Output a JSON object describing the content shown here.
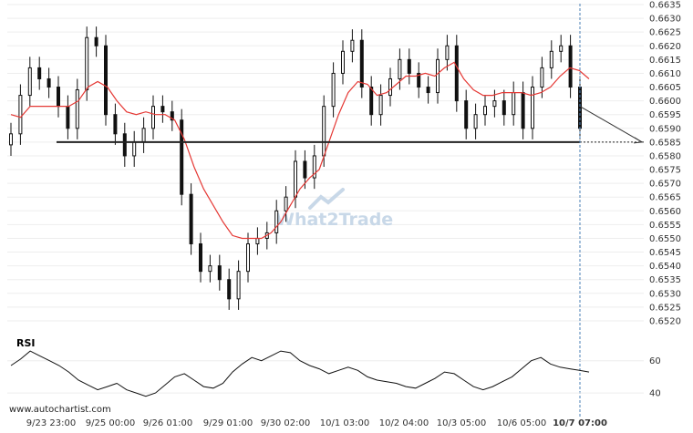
{
  "site": "www.autochartist.com",
  "watermark": {
    "part1": "What",
    "part2": "2",
    "part3": "Trade"
  },
  "colors": {
    "candle": "#111111",
    "ma": "#e53935",
    "level": "#222222",
    "rsi": "#111111",
    "grid": "#eeeeee",
    "marker": "#4a7fb5",
    "watermark": "#c8d8e8"
  },
  "chart_data": {
    "type": "line",
    "main": {
      "y_ticks": [
        "0.6635",
        "0.6630",
        "0.6625",
        "0.6620",
        "0.6615",
        "0.6610",
        "0.6605",
        "0.6600",
        "0.6595",
        "0.6590",
        "0.6585",
        "0.6580",
        "0.6575",
        "0.6570",
        "0.6565",
        "0.6560",
        "0.6555",
        "0.6550",
        "0.6545",
        "0.6540",
        "0.6535",
        "0.6530",
        "0.6525",
        "0.6520"
      ],
      "ylim": [
        0.6518,
        0.6636
      ],
      "support_level": 0.6585,
      "forecast": {
        "from": 0.6598,
        "to": 0.6585
      },
      "moving_average": [
        0.6595,
        0.6594,
        0.6598,
        0.6598,
        0.6598,
        0.6598,
        0.6598,
        0.66,
        0.6605,
        0.6607,
        0.6605,
        0.66,
        0.6596,
        0.6595,
        0.6596,
        0.6595,
        0.6595,
        0.6593,
        0.6586,
        0.6576,
        0.6568,
        0.6562,
        0.6556,
        0.6551,
        0.655,
        0.655,
        0.655,
        0.6552,
        0.6556,
        0.6562,
        0.6568,
        0.6572,
        0.6575,
        0.6585,
        0.6595,
        0.6603,
        0.6607,
        0.6606,
        0.6602,
        0.6603,
        0.6606,
        0.6609,
        0.6609,
        0.661,
        0.6609,
        0.6612,
        0.6614,
        0.6608,
        0.6604,
        0.6602,
        0.6602,
        0.6603,
        0.6603,
        0.6603,
        0.6602,
        0.6603,
        0.6605,
        0.6609,
        0.6612,
        0.6611,
        0.6608
      ],
      "closes": [
        0.6588,
        0.6602,
        0.6612,
        0.6608,
        0.6605,
        0.6598,
        0.659,
        0.6604,
        0.6623,
        0.662,
        0.6595,
        0.6588,
        0.658,
        0.6585,
        0.659,
        0.6598,
        0.6596,
        0.6593,
        0.6566,
        0.6548,
        0.6538,
        0.654,
        0.6535,
        0.6528,
        0.6538,
        0.6548,
        0.655,
        0.6552,
        0.656,
        0.6565,
        0.6578,
        0.6572,
        0.658,
        0.6598,
        0.661,
        0.6618,
        0.6622,
        0.6605,
        0.6595,
        0.6602,
        0.6608,
        0.6615,
        0.661,
        0.6605,
        0.6603,
        0.6615,
        0.662,
        0.66,
        0.659,
        0.6595,
        0.6598,
        0.66,
        0.6595,
        0.6603,
        0.659,
        0.6605,
        0.6612,
        0.6618,
        0.662,
        0.6605,
        0.659
      ]
    },
    "rsi": {
      "title": "RSI",
      "y_ticks": [
        "60",
        "40"
      ],
      "ylim": [
        35,
        70
      ],
      "values": [
        57,
        61,
        66,
        63,
        60,
        57,
        53,
        48,
        45,
        42,
        44,
        46,
        42,
        40,
        38,
        40,
        45,
        50,
        52,
        48,
        44,
        43,
        46,
        53,
        58,
        62,
        60,
        63,
        66,
        65,
        60,
        57,
        55,
        52,
        54,
        56,
        54,
        50,
        48,
        47,
        46,
        44,
        43,
        46,
        49,
        53,
        52,
        48,
        44,
        42,
        44,
        47,
        50,
        55,
        60,
        62,
        58,
        56,
        55,
        54,
        53
      ]
    },
    "x_ticks": [
      "9/23 23:00",
      "9/25 00:00",
      "9/26 01:00",
      "9/29 01:00",
      "9/30 02:00",
      "10/1 03:00",
      "10/2 04:00",
      "10/3 05:00",
      "10/6 05:00",
      "10/7 07:00"
    ]
  }
}
